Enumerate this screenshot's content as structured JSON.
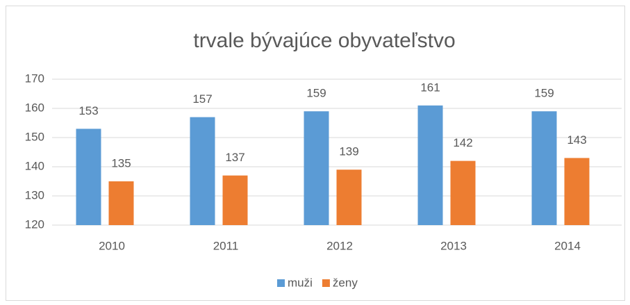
{
  "chart_data": {
    "type": "bar",
    "title": "trvale bývajúce obyvateľstvo",
    "categories": [
      "2010",
      "2011",
      "2012",
      "2013",
      "2014"
    ],
    "series": [
      {
        "name": "muži",
        "color": "#5b9bd5",
        "values": [
          153,
          157,
          159,
          161,
          159
        ]
      },
      {
        "name": "ženy",
        "color": "#ed7d31",
        "values": [
          135,
          137,
          139,
          142,
          143
        ]
      }
    ],
    "ylim": [
      120,
      170
    ],
    "yticks": [
      120,
      130,
      140,
      150,
      160,
      170
    ],
    "grid": true,
    "legend": "bottom"
  }
}
